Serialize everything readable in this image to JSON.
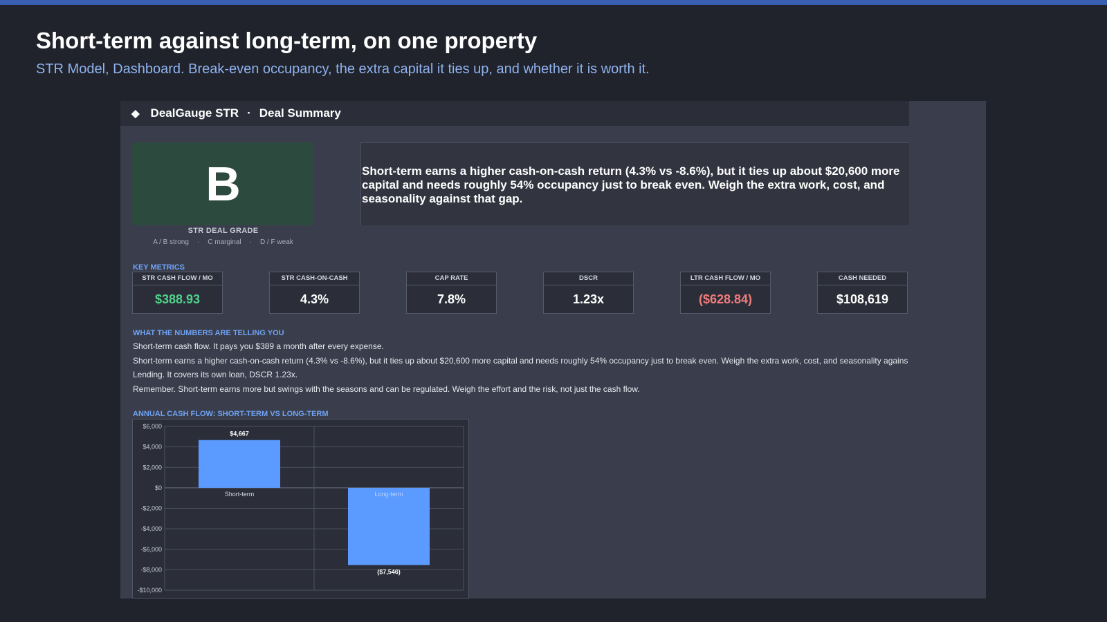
{
  "page": {
    "title": "Short-term against long-term, on one property",
    "subtitle": "STR Model, Dashboard. Break-even occupancy, the extra capital it ties up, and whether it is worth it."
  },
  "sheet": {
    "header": {
      "icon": "diamond-icon",
      "app_name": "DealGauge STR",
      "separator": "·",
      "section": "Deal Summary"
    },
    "grade": {
      "letter": "B",
      "caption": "STR DEAL GRADE",
      "legend": [
        "A / B strong",
        "C marginal",
        "D / F weak"
      ],
      "legend_separator": "·",
      "color": "#2c4a3e"
    },
    "summary": "Short-term earns a higher cash-on-cash return (4.3% vs -8.6%), but it ties up about $20,600 more capital and needs roughly 54% occupancy just to break even. Weigh the extra work, cost, and seasonality against that gap.",
    "key_metrics_label": "KEY METRICS",
    "metrics": [
      {
        "label": "STR CASH FLOW / MO",
        "value": "$388.93",
        "color": "#4fd18b"
      },
      {
        "label": "STR CASH-ON-CASH",
        "value": "4.3%",
        "color": "#ffffff"
      },
      {
        "label": "CAP RATE",
        "value": "7.8%",
        "color": "#ffffff"
      },
      {
        "label": "DSCR",
        "value": "1.23x",
        "color": "#ffffff"
      },
      {
        "label": "LTR CASH FLOW / MO",
        "value": "($628.84)",
        "color": "#f07c7c"
      },
      {
        "label": "CASH NEEDED",
        "value": "$108,619",
        "color": "#ffffff"
      }
    ],
    "insights_label": "WHAT THE NUMBERS ARE TELLING YOU",
    "insights": [
      "Short-term cash flow.  It pays you $389 a month after every expense.",
      "Short-term earns a higher cash-on-cash return (4.3% vs -8.6%), but it ties up about $20,600 more capital and needs roughly 54% occupancy just to break even. Weigh the extra work, cost, and seasonality against",
      "Lending.  It covers its own loan, DSCR 1.23x.",
      "Remember.  Short-term earns more but swings with the seasons and can be regulated. Weigh the effort and the risk, not just the cash flow."
    ],
    "chart_label": "ANNUAL CASH FLOW: SHORT-TERM VS LONG-TERM"
  },
  "chart_data": {
    "type": "bar",
    "title": "ANNUAL CASH FLOW: SHORT-TERM VS LONG-TERM",
    "categories": [
      "Short-term",
      "Long-term"
    ],
    "values": [
      4667,
      -7546
    ],
    "data_labels": [
      "$4,667",
      "($7,546)"
    ],
    "ylim": [
      -10000,
      6000
    ],
    "yticks": [
      6000,
      4000,
      2000,
      0,
      -2000,
      -4000,
      -6000,
      -8000,
      -10000
    ],
    "ytick_labels": [
      "$6,000",
      "$4,000",
      "$2,000",
      "$0",
      "-$2,000",
      "-$4,000",
      "-$6,000",
      "-$8,000",
      "-$10,000"
    ],
    "bar_color": "#5b9bff",
    "grid": true
  }
}
